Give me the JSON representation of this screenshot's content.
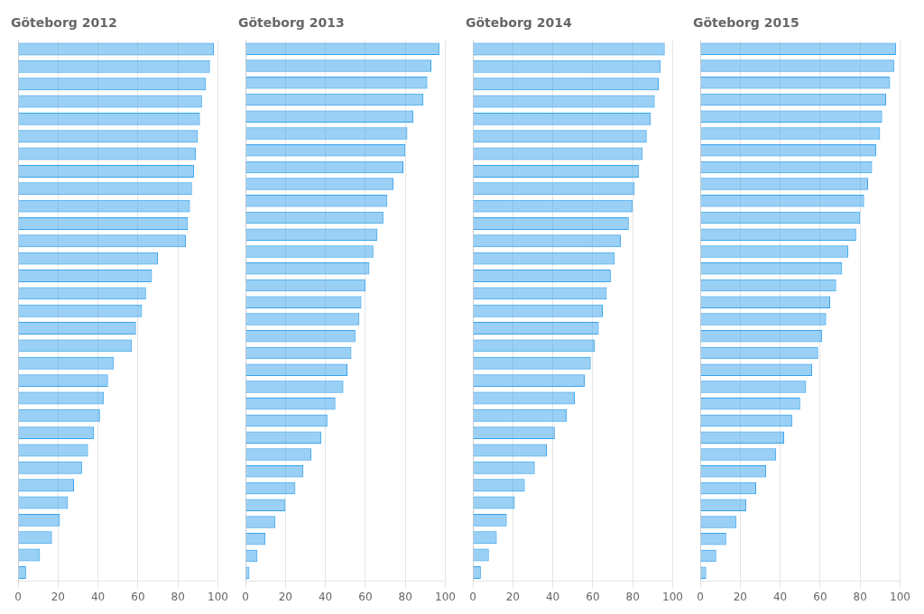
{
  "chart_data": [
    {
      "type": "bar",
      "orientation": "horizontal",
      "title": "Göteborg 2012",
      "categories": [
        null,
        null,
        null,
        null,
        null,
        null,
        null,
        null,
        null,
        null,
        null,
        null,
        null,
        null,
        null,
        null,
        null,
        null,
        null,
        null,
        null,
        null,
        null,
        null,
        null,
        null,
        null,
        null,
        null,
        null,
        null
      ],
      "values": [
        98,
        96,
        94,
        92,
        91,
        90,
        89,
        88,
        87,
        86,
        85,
        84,
        70,
        67,
        64,
        62,
        59,
        57,
        48,
        45,
        43,
        41,
        38,
        35,
        32,
        28,
        25,
        21,
        17,
        11,
        4
      ],
      "xlim": [
        0,
        100
      ],
      "xticks": [
        0,
        20,
        40,
        60,
        80,
        100
      ],
      "grid": true,
      "tick_labels": "x"
    },
    {
      "type": "bar",
      "orientation": "horizontal",
      "title": "Göteborg 2013",
      "categories": [
        null,
        null,
        null,
        null,
        null,
        null,
        null,
        null,
        null,
        null,
        null,
        null,
        null,
        null,
        null,
        null,
        null,
        null,
        null,
        null,
        null,
        null,
        null,
        null,
        null,
        null,
        null,
        null,
        null,
        null,
        null,
        null
      ],
      "values": [
        97,
        93,
        91,
        89,
        84,
        81,
        80,
        79,
        74,
        71,
        69,
        66,
        64,
        62,
        60,
        58,
        57,
        55,
        53,
        51,
        49,
        45,
        41,
        38,
        33,
        29,
        25,
        20,
        15,
        10,
        6,
        2
      ],
      "xlim": [
        0,
        100
      ],
      "xticks": [
        0,
        20,
        40,
        60,
        80,
        100
      ],
      "grid": true,
      "tick_labels": "x"
    },
    {
      "type": "bar",
      "orientation": "horizontal",
      "title": "Göteborg 2014",
      "categories": [
        null,
        null,
        null,
        null,
        null,
        null,
        null,
        null,
        null,
        null,
        null,
        null,
        null,
        null,
        null,
        null,
        null,
        null,
        null,
        null,
        null,
        null,
        null,
        null,
        null,
        null,
        null,
        null,
        null,
        null,
        null
      ],
      "values": [
        96,
        94,
        93,
        91,
        89,
        87,
        85,
        83,
        81,
        80,
        78,
        74,
        71,
        69,
        67,
        65,
        63,
        61,
        59,
        56,
        51,
        47,
        41,
        37,
        31,
        26,
        21,
        17,
        12,
        8,
        4
      ],
      "xlim": [
        0,
        100
      ],
      "xticks": [
        0,
        20,
        40,
        60,
        80,
        100
      ],
      "grid": true,
      "tick_labels": "x"
    },
    {
      "type": "bar",
      "orientation": "horizontal",
      "title": "Göteborg 2015",
      "categories": [
        null,
        null,
        null,
        null,
        null,
        null,
        null,
        null,
        null,
        null,
        null,
        null,
        null,
        null,
        null,
        null,
        null,
        null,
        null,
        null,
        null,
        null,
        null,
        null,
        null,
        null,
        null,
        null,
        null,
        null,
        null,
        null
      ],
      "values": [
        98,
        97,
        95,
        93,
        91,
        90,
        88,
        86,
        84,
        82,
        80,
        78,
        74,
        71,
        68,
        65,
        63,
        61,
        59,
        56,
        53,
        50,
        46,
        42,
        38,
        33,
        28,
        23,
        18,
        13,
        8,
        3
      ],
      "xlim": [
        0,
        100
      ],
      "xticks": [
        0,
        20,
        40,
        60,
        80,
        100
      ],
      "grid": true,
      "tick_labels": "x"
    }
  ]
}
